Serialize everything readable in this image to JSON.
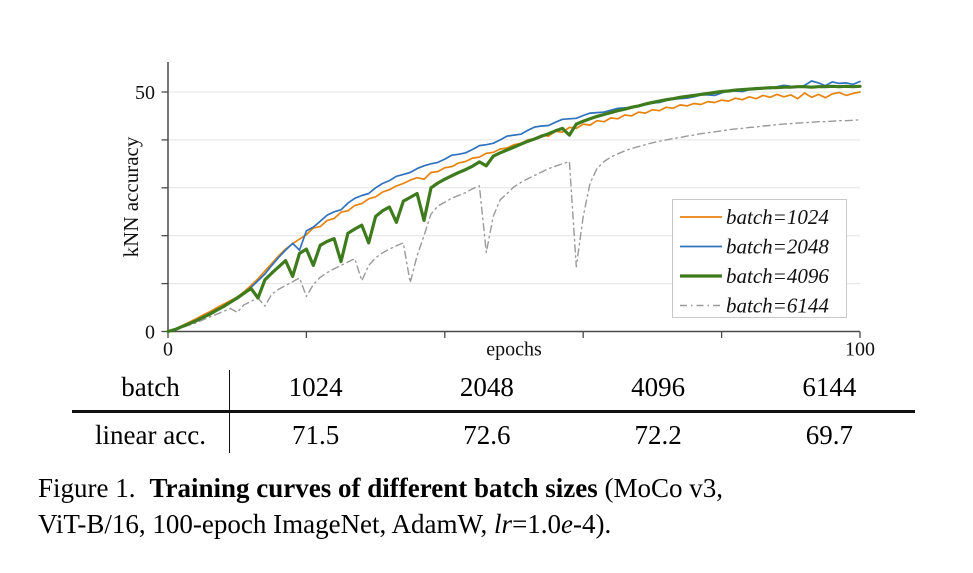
{
  "chart_data": {
    "type": "line",
    "x_label": "epochs",
    "y_label": "kNN accuracy",
    "x_start": 0,
    "x_step": 1,
    "xlim": [
      0,
      100
    ],
    "ylim": [
      0,
      55
    ],
    "x_ticks": [
      0,
      20,
      40,
      60,
      80,
      100
    ],
    "x_tick_labels": {
      "0": "0",
      "100": "100"
    },
    "y_ticks": [
      0,
      10,
      20,
      30,
      40,
      50
    ],
    "y_tick_labels": {
      "0": "0",
      "50": "50"
    },
    "gridlines_y": [
      10,
      20,
      30,
      40,
      50
    ],
    "legend_position": "lower-right-inside",
    "grid_color": "#e3e3e3",
    "axis_color": "#4a4a4a",
    "series": [
      {
        "label": "batch=1024",
        "color": "#e8830e",
        "width": 1.7,
        "dash": null,
        "values": [
          0,
          0.5,
          1.2,
          1.9,
          2.6,
          3.4,
          4.1,
          4.9,
          5.7,
          6.4,
          7.2,
          8.3,
          9.6,
          11.0,
          12.6,
          14.2,
          15.8,
          17.2,
          18.3,
          19.3,
          20.2,
          21.6,
          21.9,
          23.2,
          23.6,
          24.9,
          25.2,
          26.3,
          26.7,
          27.7,
          28.1,
          29.1,
          29.6,
          30.4,
          30.9,
          31.6,
          32.1,
          31.8,
          33.2,
          33.4,
          34.2,
          34.4,
          35.2,
          35.5,
          36.2,
          36.4,
          37.2,
          37.4,
          38.1,
          38.3,
          39.0,
          39.3,
          40.0,
          40.2,
          41.0,
          40.8,
          41.8,
          41.6,
          42.6,
          42.4,
          43.3,
          43.1,
          44.0,
          43.8,
          44.6,
          44.4,
          45.2,
          45.0,
          45.8,
          45.6,
          46.3,
          46.1,
          46.8,
          46.6,
          47.3,
          47.1,
          47.6,
          47.4,
          48.0,
          47.8,
          48.3,
          48.1,
          48.7,
          48.4,
          49.0,
          48.6,
          49.3,
          48.9,
          49.5,
          49.0,
          49.4,
          48.6,
          49.8,
          48.9,
          49.5,
          48.8,
          49.6,
          49.9,
          49.3,
          49.7,
          50.0
        ]
      },
      {
        "label": "batch=2048",
        "color": "#3072bd",
        "width": 1.7,
        "dash": null,
        "values": [
          0,
          0.4,
          1.0,
          1.7,
          2.3,
          3.0,
          3.8,
          4.5,
          5.2,
          6.0,
          6.8,
          7.9,
          9.2,
          10.6,
          12.0,
          13.8,
          15.5,
          17.0,
          18.4,
          17.0,
          21.0,
          21.8,
          23.0,
          24.3,
          25.0,
          25.4,
          26.8,
          27.8,
          28.4,
          28.8,
          30.0,
          30.9,
          31.5,
          32.4,
          32.8,
          33.2,
          34.0,
          34.6,
          35.0,
          35.3,
          36.0,
          36.8,
          37.0,
          37.3,
          38.0,
          38.8,
          39.0,
          39.3,
          40.0,
          40.8,
          41.0,
          41.2,
          42.0,
          42.7,
          42.9,
          43.0,
          43.7,
          44.3,
          44.4,
          44.5,
          45.1,
          45.6,
          45.7,
          45.8,
          46.2,
          46.6,
          46.7,
          46.8,
          47.2,
          47.6,
          47.7,
          47.8,
          48.2,
          48.5,
          48.6,
          48.7,
          49.0,
          49.4,
          49.4,
          49.3,
          49.8,
          50.3,
          50.2,
          50.1,
          50.5,
          50.9,
          50.8,
          50.7,
          51.1,
          51.4,
          51.2,
          51.0,
          51.4,
          52.3,
          51.9,
          51.3,
          52.1,
          51.8,
          51.9,
          51.6,
          52.2
        ]
      },
      {
        "label": "batch=4096",
        "color": "#3e7b1d",
        "width": 3.2,
        "dash": null,
        "values": [
          0,
          0.4,
          1.0,
          1.6,
          2.2,
          2.9,
          3.6,
          4.4,
          5.2,
          6.1,
          7.0,
          8.0,
          9.0,
          7.0,
          10.8,
          12.2,
          13.5,
          14.8,
          11.5,
          16.3,
          17.2,
          13.8,
          18.0,
          18.8,
          19.4,
          14.6,
          20.5,
          21.4,
          22.2,
          18.5,
          24.0,
          25.2,
          26.0,
          22.8,
          27.2,
          28.0,
          28.8,
          23.2,
          30.0,
          31.0,
          31.8,
          32.5,
          33.2,
          33.8,
          34.5,
          35.4,
          34.6,
          36.6,
          37.3,
          37.9,
          38.5,
          39.1,
          39.7,
          40.2,
          40.8,
          41.3,
          41.9,
          42.4,
          41.0,
          43.3,
          43.9,
          44.4,
          44.9,
          45.3,
          45.7,
          46.1,
          46.4,
          46.8,
          47.1,
          47.5,
          47.8,
          48.1,
          48.4,
          48.6,
          48.9,
          49.1,
          49.3,
          49.5,
          49.7,
          49.9,
          50.1,
          50.2,
          50.4,
          50.5,
          50.6,
          50.7,
          50.8,
          50.9,
          50.9,
          51.0,
          51.0,
          51.1,
          51.1,
          51.0,
          51.1,
          51.1,
          51.2,
          51.1,
          51.2,
          51.1,
          51.2
        ]
      },
      {
        "label": "batch=6144",
        "color": "#9a9a9a",
        "width": 1.4,
        "dash": "7 4 1.5 4",
        "values": [
          0,
          0.3,
          0.8,
          1.3,
          1.8,
          2.4,
          3.0,
          3.6,
          4.2,
          4.8,
          4.0,
          5.6,
          6.3,
          7.0,
          5.3,
          7.8,
          8.8,
          9.6,
          10.4,
          11.2,
          7.3,
          9.8,
          11.3,
          12.3,
          13.1,
          13.8,
          14.5,
          15.2,
          10.6,
          13.8,
          15.4,
          16.4,
          17.2,
          17.9,
          18.5,
          10.2,
          15.8,
          20.0,
          24.5,
          26.2,
          27.0,
          27.8,
          28.4,
          29.0,
          29.8,
          30.4,
          16.5,
          24.0,
          27.5,
          28.8,
          30.2,
          31.1,
          31.9,
          32.6,
          33.3,
          34.0,
          34.5,
          35.0,
          35.5,
          13.5,
          24.0,
          31.0,
          34.0,
          35.5,
          36.4,
          37.1,
          37.7,
          38.2,
          38.6,
          39.0,
          39.4,
          39.7,
          40.0,
          40.3,
          40.5,
          40.8,
          41.0,
          41.3,
          41.5,
          41.7,
          41.9,
          42.1,
          42.3,
          42.4,
          42.6,
          42.7,
          42.9,
          43.0,
          43.2,
          43.3,
          43.4,
          43.5,
          43.6,
          43.7,
          43.8,
          43.8,
          43.9,
          44.0,
          44.0,
          44.1,
          44.2
        ]
      }
    ]
  },
  "table": {
    "header": [
      "batch",
      "1024",
      "2048",
      "4096",
      "6144"
    ],
    "row": [
      "linear acc.",
      "71.5",
      "72.6",
      "72.2",
      "69.7"
    ]
  },
  "caption": {
    "figure_label": "Figure 1.",
    "title": "Training curves of different batch sizes",
    "line1_tail": "(MoCo v3,",
    "line2_pre": "ViT-B/16, 100-epoch ImageNet, AdamW, ",
    "lr": "lr",
    "eq": "=1.0",
    "e": "e",
    "tail": "-4)."
  }
}
